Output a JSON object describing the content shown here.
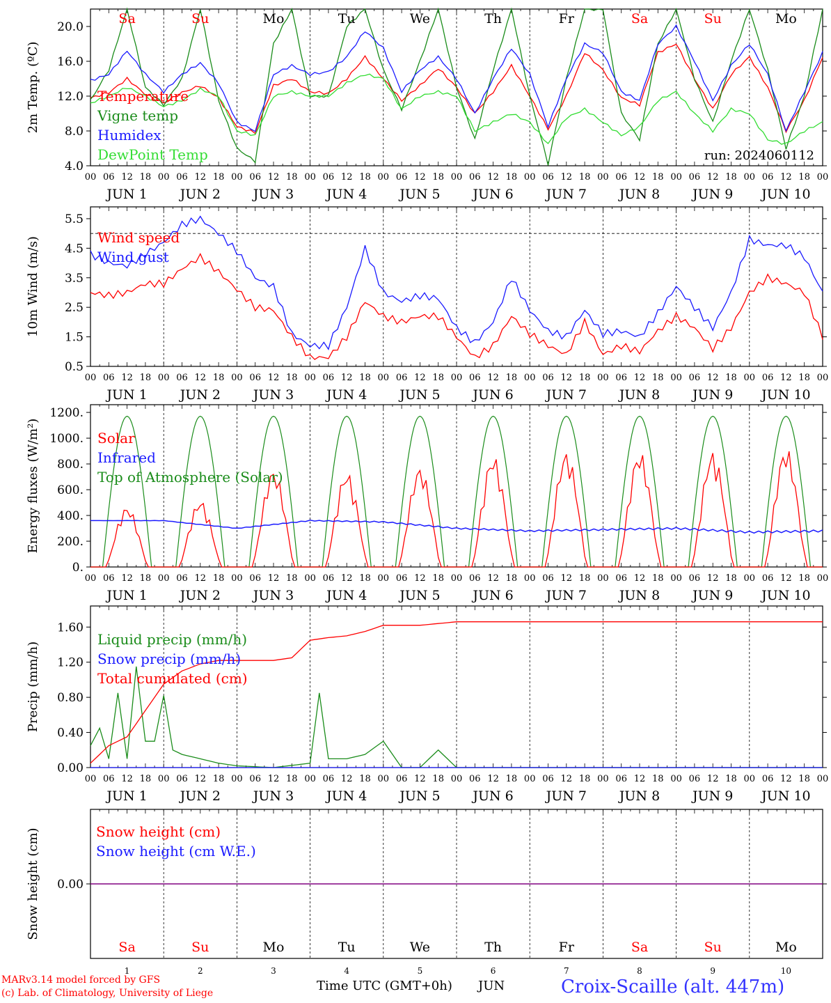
{
  "footer": {
    "model_line": "MARv3.14 model forced by GFS",
    "lab_line": "(c) Lab. of Climatology, University of Liege",
    "time_axis_label": "Time UTC (GMT+0h)",
    "month_label": "JUN",
    "station": "Croix-Scaille (alt. 447m)"
  },
  "days": {
    "names": [
      "Sa",
      "Su",
      "Mo",
      "Tu",
      "We",
      "Th",
      "Fr",
      "Sa",
      "Su",
      "Mo"
    ],
    "weekend_flags": [
      true,
      true,
      false,
      false,
      false,
      false,
      false,
      true,
      true,
      false
    ],
    "numbers": [
      "1",
      "2",
      "3",
      "4",
      "5",
      "6",
      "7",
      "8",
      "9",
      "10"
    ],
    "hour_ticks": [
      "00",
      "06",
      "12",
      "18"
    ],
    "final_hour": "00",
    "date_labels": [
      "JUN  1",
      "JUN  2",
      "JUN  3",
      "JUN  4",
      "JUN  5",
      "JUN  6",
      "JUN  7",
      "JUN  8",
      "JUN  9",
      "JUN 10"
    ]
  },
  "colors": {
    "red": "#ff0000",
    "green": "#1a8c1a",
    "blue": "#1a1aff",
    "lightgreen": "#33dd33",
    "purple": "#800080"
  },
  "chart_data": [
    {
      "type": "line",
      "ylabel": "2m Temp. (ºC)",
      "ylim": [
        4,
        22
      ],
      "yticks": [
        "4.0",
        "8.0",
        "12.0",
        "16.0",
        "20.0"
      ],
      "run_label": "run: 2024060112",
      "x_unit": "hours since JUN 1 00 UTC",
      "series": [
        {
          "name": "Temperature",
          "color": "red",
          "x": [
            0,
            6,
            12,
            18,
            24,
            30,
            36,
            42,
            48,
            54,
            60,
            66,
            72,
            78,
            84,
            90,
            96,
            102,
            108,
            114,
            120,
            126,
            132,
            138,
            144,
            150,
            156,
            162,
            168,
            174,
            180,
            186,
            192,
            198,
            204,
            210,
            216,
            222,
            228,
            234,
            240
          ],
          "values": [
            11.8,
            12.4,
            14.0,
            12.2,
            11.2,
            12.4,
            13.2,
            11.8,
            8.5,
            7.8,
            13.2,
            14.0,
            12.5,
            12.3,
            14.0,
            16.5,
            14.0,
            11.5,
            13.2,
            15.2,
            13.0,
            10.0,
            12.5,
            15.5,
            12.0,
            8.2,
            12.0,
            17.0,
            15.0,
            11.8,
            11.0,
            17.0,
            18.0,
            14.0,
            10.5,
            14.5,
            16.5,
            13.0,
            8.0,
            11.5,
            16.5
          ]
        },
        {
          "name": "Vigne temp",
          "color": "green",
          "x": [
            0,
            6,
            12,
            18,
            24,
            30,
            36,
            42,
            48,
            54,
            60,
            66,
            72,
            78,
            84,
            90,
            96,
            102,
            108,
            114,
            120,
            126,
            132,
            138,
            144,
            150,
            156,
            162,
            168,
            174,
            180,
            186,
            192,
            198,
            204,
            210,
            216,
            222,
            228,
            234,
            240
          ],
          "values": [
            11.5,
            15.0,
            22.0,
            13.0,
            11.0,
            14.0,
            22.0,
            11.5,
            6.0,
            4.5,
            18.0,
            22.0,
            12.0,
            12.0,
            20.0,
            22.0,
            15.0,
            10.5,
            16.0,
            22.0,
            13.0,
            7.0,
            15.0,
            22.0,
            12.0,
            4.2,
            14.0,
            22.0,
            22.0,
            10.0,
            7.0,
            18.0,
            22.0,
            14.0,
            9.0,
            16.0,
            22.0,
            15.0,
            6.0,
            12.0,
            22.0
          ]
        },
        {
          "name": "Humidex",
          "color": "blue",
          "x": [
            0,
            6,
            12,
            18,
            24,
            30,
            36,
            42,
            48,
            54,
            60,
            66,
            72,
            78,
            84,
            90,
            96,
            102,
            108,
            114,
            120,
            126,
            132,
            138,
            144,
            150,
            156,
            162,
            168,
            174,
            180,
            186,
            192,
            198,
            204,
            210,
            216,
            222,
            228,
            234,
            240
          ],
          "values": [
            13.8,
            14.5,
            17.2,
            14.5,
            12.5,
            14.5,
            15.8,
            13.5,
            9.0,
            8.0,
            14.5,
            15.5,
            14.5,
            14.8,
            16.5,
            19.5,
            17.5,
            12.5,
            15.0,
            16.5,
            14.0,
            10.0,
            14.0,
            17.5,
            14.5,
            8.5,
            14.0,
            18.0,
            17.0,
            12.5,
            11.5,
            18.0,
            20.0,
            16.0,
            11.5,
            15.5,
            18.0,
            14.5,
            8.0,
            12.5,
            17.0
          ]
        },
        {
          "name": "DewPoint Temp",
          "color": "lightgreen",
          "x": [
            0,
            6,
            12,
            18,
            24,
            30,
            36,
            42,
            48,
            54,
            60,
            66,
            72,
            78,
            84,
            90,
            96,
            102,
            108,
            114,
            120,
            126,
            132,
            138,
            144,
            150,
            156,
            162,
            168,
            174,
            180,
            186,
            192,
            198,
            204,
            210,
            216,
            222,
            228,
            234,
            240
          ],
          "values": [
            11.2,
            12.0,
            13.0,
            12.0,
            10.8,
            11.5,
            12.8,
            12.0,
            8.0,
            7.5,
            12.0,
            12.5,
            12.0,
            12.0,
            13.5,
            14.5,
            14.0,
            10.5,
            12.0,
            12.5,
            12.0,
            8.0,
            9.0,
            10.0,
            9.0,
            6.5,
            9.5,
            10.5,
            9.0,
            7.5,
            8.5,
            11.5,
            12.5,
            10.0,
            8.0,
            10.5,
            10.0,
            7.0,
            6.5,
            8.0,
            9.0
          ]
        }
      ]
    },
    {
      "type": "line",
      "ylabel": "10m Wind (m/s)",
      "ylim": [
        0.5,
        5.9
      ],
      "yticks": [
        "0.5",
        "1.5",
        "2.5",
        "3.5",
        "4.5",
        "5.5"
      ],
      "reference_line": 5.0,
      "series": [
        {
          "name": "Wind speed",
          "color": "red",
          "x": [
            0,
            6,
            12,
            18,
            24,
            30,
            36,
            42,
            48,
            54,
            60,
            66,
            72,
            78,
            84,
            90,
            96,
            102,
            108,
            114,
            120,
            126,
            132,
            138,
            144,
            150,
            156,
            162,
            168,
            174,
            180,
            186,
            192,
            198,
            204,
            210,
            216,
            222,
            228,
            234,
            240
          ],
          "values": [
            3.0,
            2.9,
            3.0,
            3.3,
            3.3,
            3.8,
            4.2,
            3.7,
            3.1,
            2.5,
            2.4,
            1.5,
            0.8,
            0.8,
            1.5,
            2.7,
            2.2,
            2.0,
            2.2,
            2.2,
            1.5,
            0.8,
            1.2,
            2.2,
            1.6,
            1.2,
            0.9,
            2.0,
            0.9,
            1.2,
            1.0,
            1.7,
            2.2,
            1.8,
            1.1,
            1.8,
            3.0,
            3.5,
            3.3,
            3.0,
            1.5
          ]
        },
        {
          "name": "Wind gust",
          "color": "blue",
          "x": [
            0,
            6,
            12,
            18,
            24,
            30,
            36,
            42,
            48,
            54,
            60,
            66,
            72,
            78,
            84,
            90,
            96,
            102,
            108,
            114,
            120,
            126,
            132,
            138,
            144,
            150,
            156,
            162,
            168,
            174,
            180,
            186,
            192,
            198,
            204,
            210,
            216,
            222,
            228,
            234,
            240
          ],
          "values": [
            4.3,
            4.0,
            3.9,
            4.3,
            4.7,
            5.3,
            5.5,
            5.0,
            4.4,
            3.5,
            3.2,
            1.6,
            1.2,
            1.2,
            2.5,
            4.5,
            3.0,
            2.7,
            2.9,
            2.8,
            1.8,
            1.3,
            2.0,
            3.5,
            2.4,
            1.7,
            1.5,
            2.4,
            1.6,
            1.7,
            1.5,
            2.3,
            3.2,
            2.5,
            1.8,
            3.0,
            4.8,
            4.6,
            4.6,
            4.2,
            3.0
          ]
        }
      ]
    },
    {
      "type": "line",
      "ylabel": "Energy fluxes (W/m²)",
      "ylim": [
        0,
        1260
      ],
      "yticks": [
        "0.",
        "200.",
        "400.",
        "600.",
        "800.",
        "1000.",
        "1200."
      ],
      "series": [
        {
          "name": "Solar",
          "color": "red",
          "peaks": [
            470,
            520,
            760,
            740,
            780,
            870,
            900,
            900,
            900,
            930
          ],
          "x_day_peak_hour": 12
        },
        {
          "name": "Infrared",
          "color": "blue",
          "x": [
            0,
            24,
            48,
            72,
            96,
            120,
            144,
            168,
            192,
            216,
            240
          ],
          "values": [
            360,
            360,
            300,
            360,
            350,
            300,
            280,
            290,
            300,
            270,
            280
          ]
        },
        {
          "name": "Top of Atmosphere (Solar)",
          "color": "green",
          "peak": 1170,
          "daylight_hours": [
            4,
            20
          ]
        }
      ]
    },
    {
      "type": "line",
      "ylabel": "Precip (mm/h)",
      "ylim": [
        0,
        1.84
      ],
      "yticks": [
        "0.00",
        "0.40",
        "0.80",
        "1.20",
        "1.60"
      ],
      "series": [
        {
          "name": "Liquid precip (mm/h)",
          "color": "green",
          "x": [
            0,
            3,
            6,
            9,
            12,
            15,
            18,
            21,
            24,
            27,
            30,
            36,
            42,
            48,
            60,
            72,
            75,
            78,
            84,
            90,
            96,
            102,
            108,
            114,
            120,
            240
          ],
          "values": [
            0.25,
            0.45,
            0.1,
            0.85,
            0.1,
            1.15,
            0.3,
            0.3,
            0.82,
            0.2,
            0.15,
            0.1,
            0.05,
            0.02,
            0.0,
            0.05,
            0.85,
            0.1,
            0.1,
            0.15,
            0.3,
            0.0,
            0.0,
            0.2,
            0.0,
            0.0
          ]
        },
        {
          "name": "Snow precip (mm/h)",
          "color": "blue",
          "x": [
            0,
            240
          ],
          "values": [
            0.0,
            0.0
          ]
        },
        {
          "name": "Total cumulated (cm)",
          "color": "red",
          "x": [
            0,
            6,
            12,
            18,
            24,
            30,
            36,
            42,
            48,
            60,
            66,
            72,
            78,
            84,
            90,
            96,
            108,
            114,
            120,
            240
          ],
          "values": [
            0.05,
            0.25,
            0.35,
            0.65,
            0.95,
            1.1,
            1.18,
            1.22,
            1.22,
            1.22,
            1.25,
            1.45,
            1.48,
            1.5,
            1.55,
            1.62,
            1.62,
            1.64,
            1.66,
            1.66
          ]
        }
      ]
    },
    {
      "type": "line",
      "ylabel": "Snow height (cm)",
      "yticks": [
        "0.00"
      ],
      "series": [
        {
          "name": "Snow height (cm)",
          "color": "red",
          "x": [
            0,
            240
          ],
          "values": [
            0,
            0
          ]
        },
        {
          "name": "Snow height (cm W.E.)",
          "color": "blue",
          "x": [
            0,
            240
          ],
          "values": [
            0,
            0
          ]
        }
      ]
    }
  ]
}
